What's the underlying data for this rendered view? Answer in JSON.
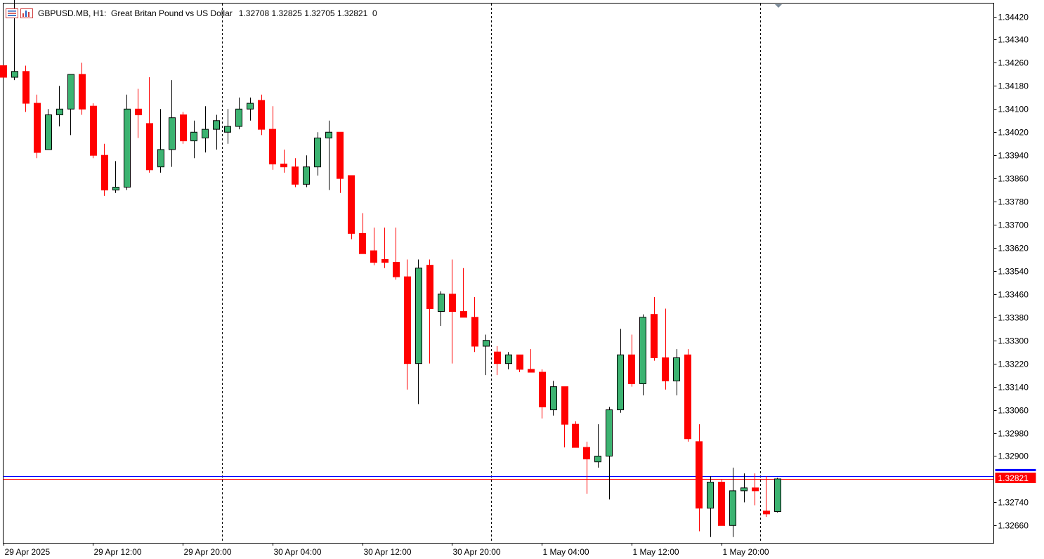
{
  "header": {
    "symbol_line": "GBPUSD.MB, H1:  Great Britan Pound vs US Dollar",
    "ohlc_line": "1.32708 1.32825 1.32705 1.32821  0"
  },
  "icons": {
    "menu": "chart-menu-icon",
    "indicator": "indicator-list-icon"
  },
  "colors": {
    "bull": "#3cb371",
    "bear": "#ff0000",
    "ask_line": "#0000ff",
    "bid_line": "#ff0000",
    "price_label_bg": "#ff0000"
  },
  "current_price_label": "1.32821",
  "chart_data": {
    "type": "candlestick",
    "timeframe": "H1",
    "ylim": [
      1.326,
      1.34465
    ],
    "y_ticks": [
      1.3442,
      1.3434,
      1.3426,
      1.3418,
      1.341,
      1.3402,
      1.3394,
      1.3386,
      1.3378,
      1.337,
      1.3362,
      1.3354,
      1.3346,
      1.3338,
      1.333,
      1.3322,
      1.3314,
      1.3306,
      1.3298,
      1.329,
      1.3274,
      1.3266
    ],
    "y_tick_labels": [
      "1.34420",
      "1.34340",
      "1.34260",
      "1.34180",
      "1.34100",
      "1.34020",
      "1.33940",
      "1.33860",
      "1.33780",
      "1.33700",
      "1.33620",
      "1.33540",
      "1.33460",
      "1.33380",
      "1.33300",
      "1.33220",
      "1.33140",
      "1.33060",
      "1.32980",
      "1.32900",
      "1.32740",
      "1.32660"
    ],
    "x_labels": [
      {
        "text": "29 Apr 2025",
        "bar": 0
      },
      {
        "text": "29 Apr 12:00",
        "bar": 8
      },
      {
        "text": "29 Apr 20:00",
        "bar": 16
      },
      {
        "text": "30 Apr 04:00",
        "bar": 24
      },
      {
        "text": "30 Apr 12:00",
        "bar": 32
      },
      {
        "text": "30 Apr 20:00",
        "bar": 40
      },
      {
        "text": "1 May 04:00",
        "bar": 48
      },
      {
        "text": "1 May 12:00",
        "bar": 56
      },
      {
        "text": "1 May 20:00",
        "bar": 64
      }
    ],
    "separators": [
      19.5,
      43.5,
      67.5
    ],
    "bid": 1.32821,
    "ask": 1.32831,
    "candles": [
      [
        1.3425,
        1.3425,
        1.3421,
        1.3421
      ],
      [
        1.3421,
        1.3449,
        1.342,
        1.3423
      ],
      [
        1.3423,
        1.3425,
        1.3409,
        1.3412
      ],
      [
        1.3412,
        1.3415,
        1.3393,
        1.3395
      ],
      [
        1.3396,
        1.341,
        1.3396,
        1.3408
      ],
      [
        1.3408,
        1.3418,
        1.3404,
        1.341
      ],
      [
        1.341,
        1.3422,
        1.3401,
        1.3422
      ],
      [
        1.3422,
        1.3426,
        1.3408,
        1.341
      ],
      [
        1.3411,
        1.3412,
        1.3393,
        1.3394
      ],
      [
        1.3394,
        1.3398,
        1.338,
        1.3382
      ],
      [
        1.3382,
        1.3392,
        1.3381,
        1.3383
      ],
      [
        1.3383,
        1.3415,
        1.3382,
        1.341
      ],
      [
        1.341,
        1.3417,
        1.34,
        1.3408
      ],
      [
        1.3405,
        1.3421,
        1.3388,
        1.3389
      ],
      [
        1.339,
        1.341,
        1.3388,
        1.3396
      ],
      [
        1.3396,
        1.342,
        1.339,
        1.3407
      ],
      [
        1.3408,
        1.3409,
        1.3398,
        1.3399
      ],
      [
        1.3399,
        1.3406,
        1.3393,
        1.3402
      ],
      [
        1.34,
        1.3411,
        1.3395,
        1.3403
      ],
      [
        1.3403,
        1.3408,
        1.3396,
        1.3406
      ],
      [
        1.3402,
        1.341,
        1.3398,
        1.3404
      ],
      [
        1.3404,
        1.3414,
        1.3403,
        1.341
      ],
      [
        1.341,
        1.3414,
        1.3406,
        1.3412
      ],
      [
        1.3413,
        1.3415,
        1.3401,
        1.3403
      ],
      [
        1.3403,
        1.3411,
        1.3389,
        1.3391
      ],
      [
        1.3391,
        1.3396,
        1.3388,
        1.339
      ],
      [
        1.339,
        1.3393,
        1.3383,
        1.3384
      ],
      [
        1.3384,
        1.3394,
        1.3383,
        1.339
      ],
      [
        1.339,
        1.3402,
        1.3387,
        1.34
      ],
      [
        1.34,
        1.3406,
        1.3382,
        1.3402
      ],
      [
        1.3402,
        1.3402,
        1.3381,
        1.3386
      ],
      [
        1.3387,
        1.3387,
        1.3365,
        1.3367
      ],
      [
        1.3367,
        1.3374,
        1.336,
        1.336
      ],
      [
        1.3361,
        1.3369,
        1.3356,
        1.3357
      ],
      [
        1.3358,
        1.3369,
        1.3355,
        1.3357
      ],
      [
        1.3357,
        1.3369,
        1.3351,
        1.3352
      ],
      [
        1.3352,
        1.3358,
        1.3313,
        1.3322
      ],
      [
        1.3322,
        1.3358,
        1.3308,
        1.3355
      ],
      [
        1.3356,
        1.3358,
        1.3322,
        1.3341
      ],
      [
        1.334,
        1.3347,
        1.3335,
        1.3346
      ],
      [
        1.3346,
        1.3358,
        1.3322,
        1.334
      ],
      [
        1.334,
        1.3355,
        1.3338,
        1.3338
      ],
      [
        1.3338,
        1.3345,
        1.3326,
        1.3328
      ],
      [
        1.3328,
        1.3332,
        1.3318,
        1.333
      ],
      [
        1.3326,
        1.3328,
        1.3318,
        1.3322
      ],
      [
        1.3322,
        1.3326,
        1.332,
        1.3325
      ],
      [
        1.3325,
        1.3324,
        1.3319,
        1.332
      ],
      [
        1.332,
        1.3327,
        1.3319,
        1.3319
      ],
      [
        1.3319,
        1.332,
        1.3303,
        1.3307
      ],
      [
        1.3306,
        1.3316,
        1.3304,
        1.3314
      ],
      [
        1.3314,
        1.3314,
        1.3293,
        1.3301
      ],
      [
        1.3301,
        1.3302,
        1.3293,
        1.3293
      ],
      [
        1.3293,
        1.3295,
        1.3277,
        1.3289
      ],
      [
        1.3288,
        1.3301,
        1.3286,
        1.329
      ],
      [
        1.329,
        1.3307,
        1.3275,
        1.3306
      ],
      [
        1.3306,
        1.3334,
        1.3305,
        1.3325
      ],
      [
        1.3325,
        1.3332,
        1.3314,
        1.3315
      ],
      [
        1.3315,
        1.3339,
        1.3311,
        1.3338
      ],
      [
        1.3339,
        1.3345,
        1.3323,
        1.3324
      ],
      [
        1.3324,
        1.3341,
        1.3313,
        1.3316
      ],
      [
        1.3316,
        1.3327,
        1.3311,
        1.3324
      ],
      [
        1.3325,
        1.3327,
        1.3295,
        1.3296
      ],
      [
        1.3295,
        1.3301,
        1.3264,
        1.3272
      ],
      [
        1.3272,
        1.3283,
        1.3262,
        1.3281
      ],
      [
        1.3281,
        1.3282,
        1.3266,
        1.3266
      ],
      [
        1.3266,
        1.3286,
        1.3262,
        1.3278
      ],
      [
        1.3278,
        1.3284,
        1.3274,
        1.3279
      ],
      [
        1.3279,
        1.3284,
        1.3273,
        1.3278
      ],
      [
        1.3271,
        1.3283,
        1.3269,
        1.327
      ],
      [
        1.32708,
        1.32825,
        1.32705,
        1.32821
      ]
    ]
  }
}
